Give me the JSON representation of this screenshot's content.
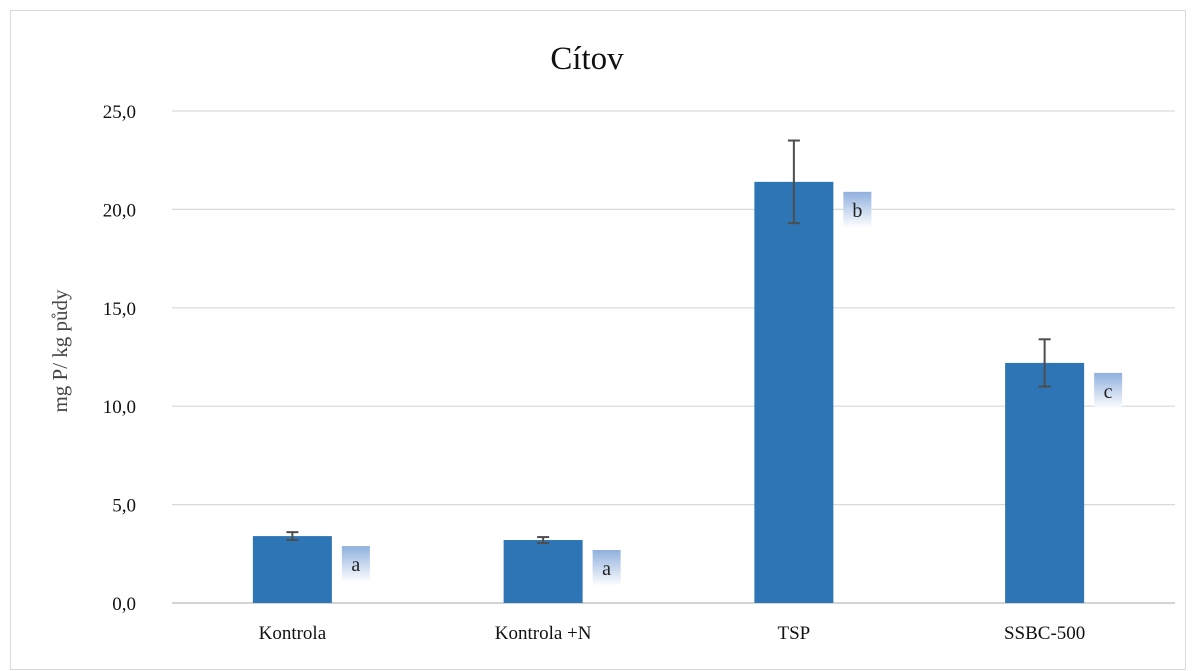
{
  "chart_data": {
    "type": "bar",
    "title": "Cítov",
    "xlabel": "",
    "ylabel": "mg P/ kg půdy",
    "categories": [
      "Kontrola",
      "Kontrola +N",
      "TSP",
      "SSBC-500"
    ],
    "values": [
      3.4,
      3.2,
      21.4,
      12.2
    ],
    "error": [
      0.2,
      0.15,
      2.1,
      1.2
    ],
    "significance": [
      "a",
      "a",
      "b",
      "c"
    ],
    "ylim": [
      0,
      25
    ],
    "yticks": [
      0,
      5,
      10,
      15,
      20,
      25
    ],
    "ytick_labels": [
      "0,0",
      "5,0",
      "10,0",
      "15,0",
      "20,0",
      "25,0"
    ],
    "grid": true,
    "colors": {
      "bar": "#2e75b6",
      "error_bar": "#4d4d4d",
      "grid": "#d9d9d9",
      "sig_box_top": "#8fb0dd",
      "sig_box_bottom": "#ffffff"
    }
  }
}
